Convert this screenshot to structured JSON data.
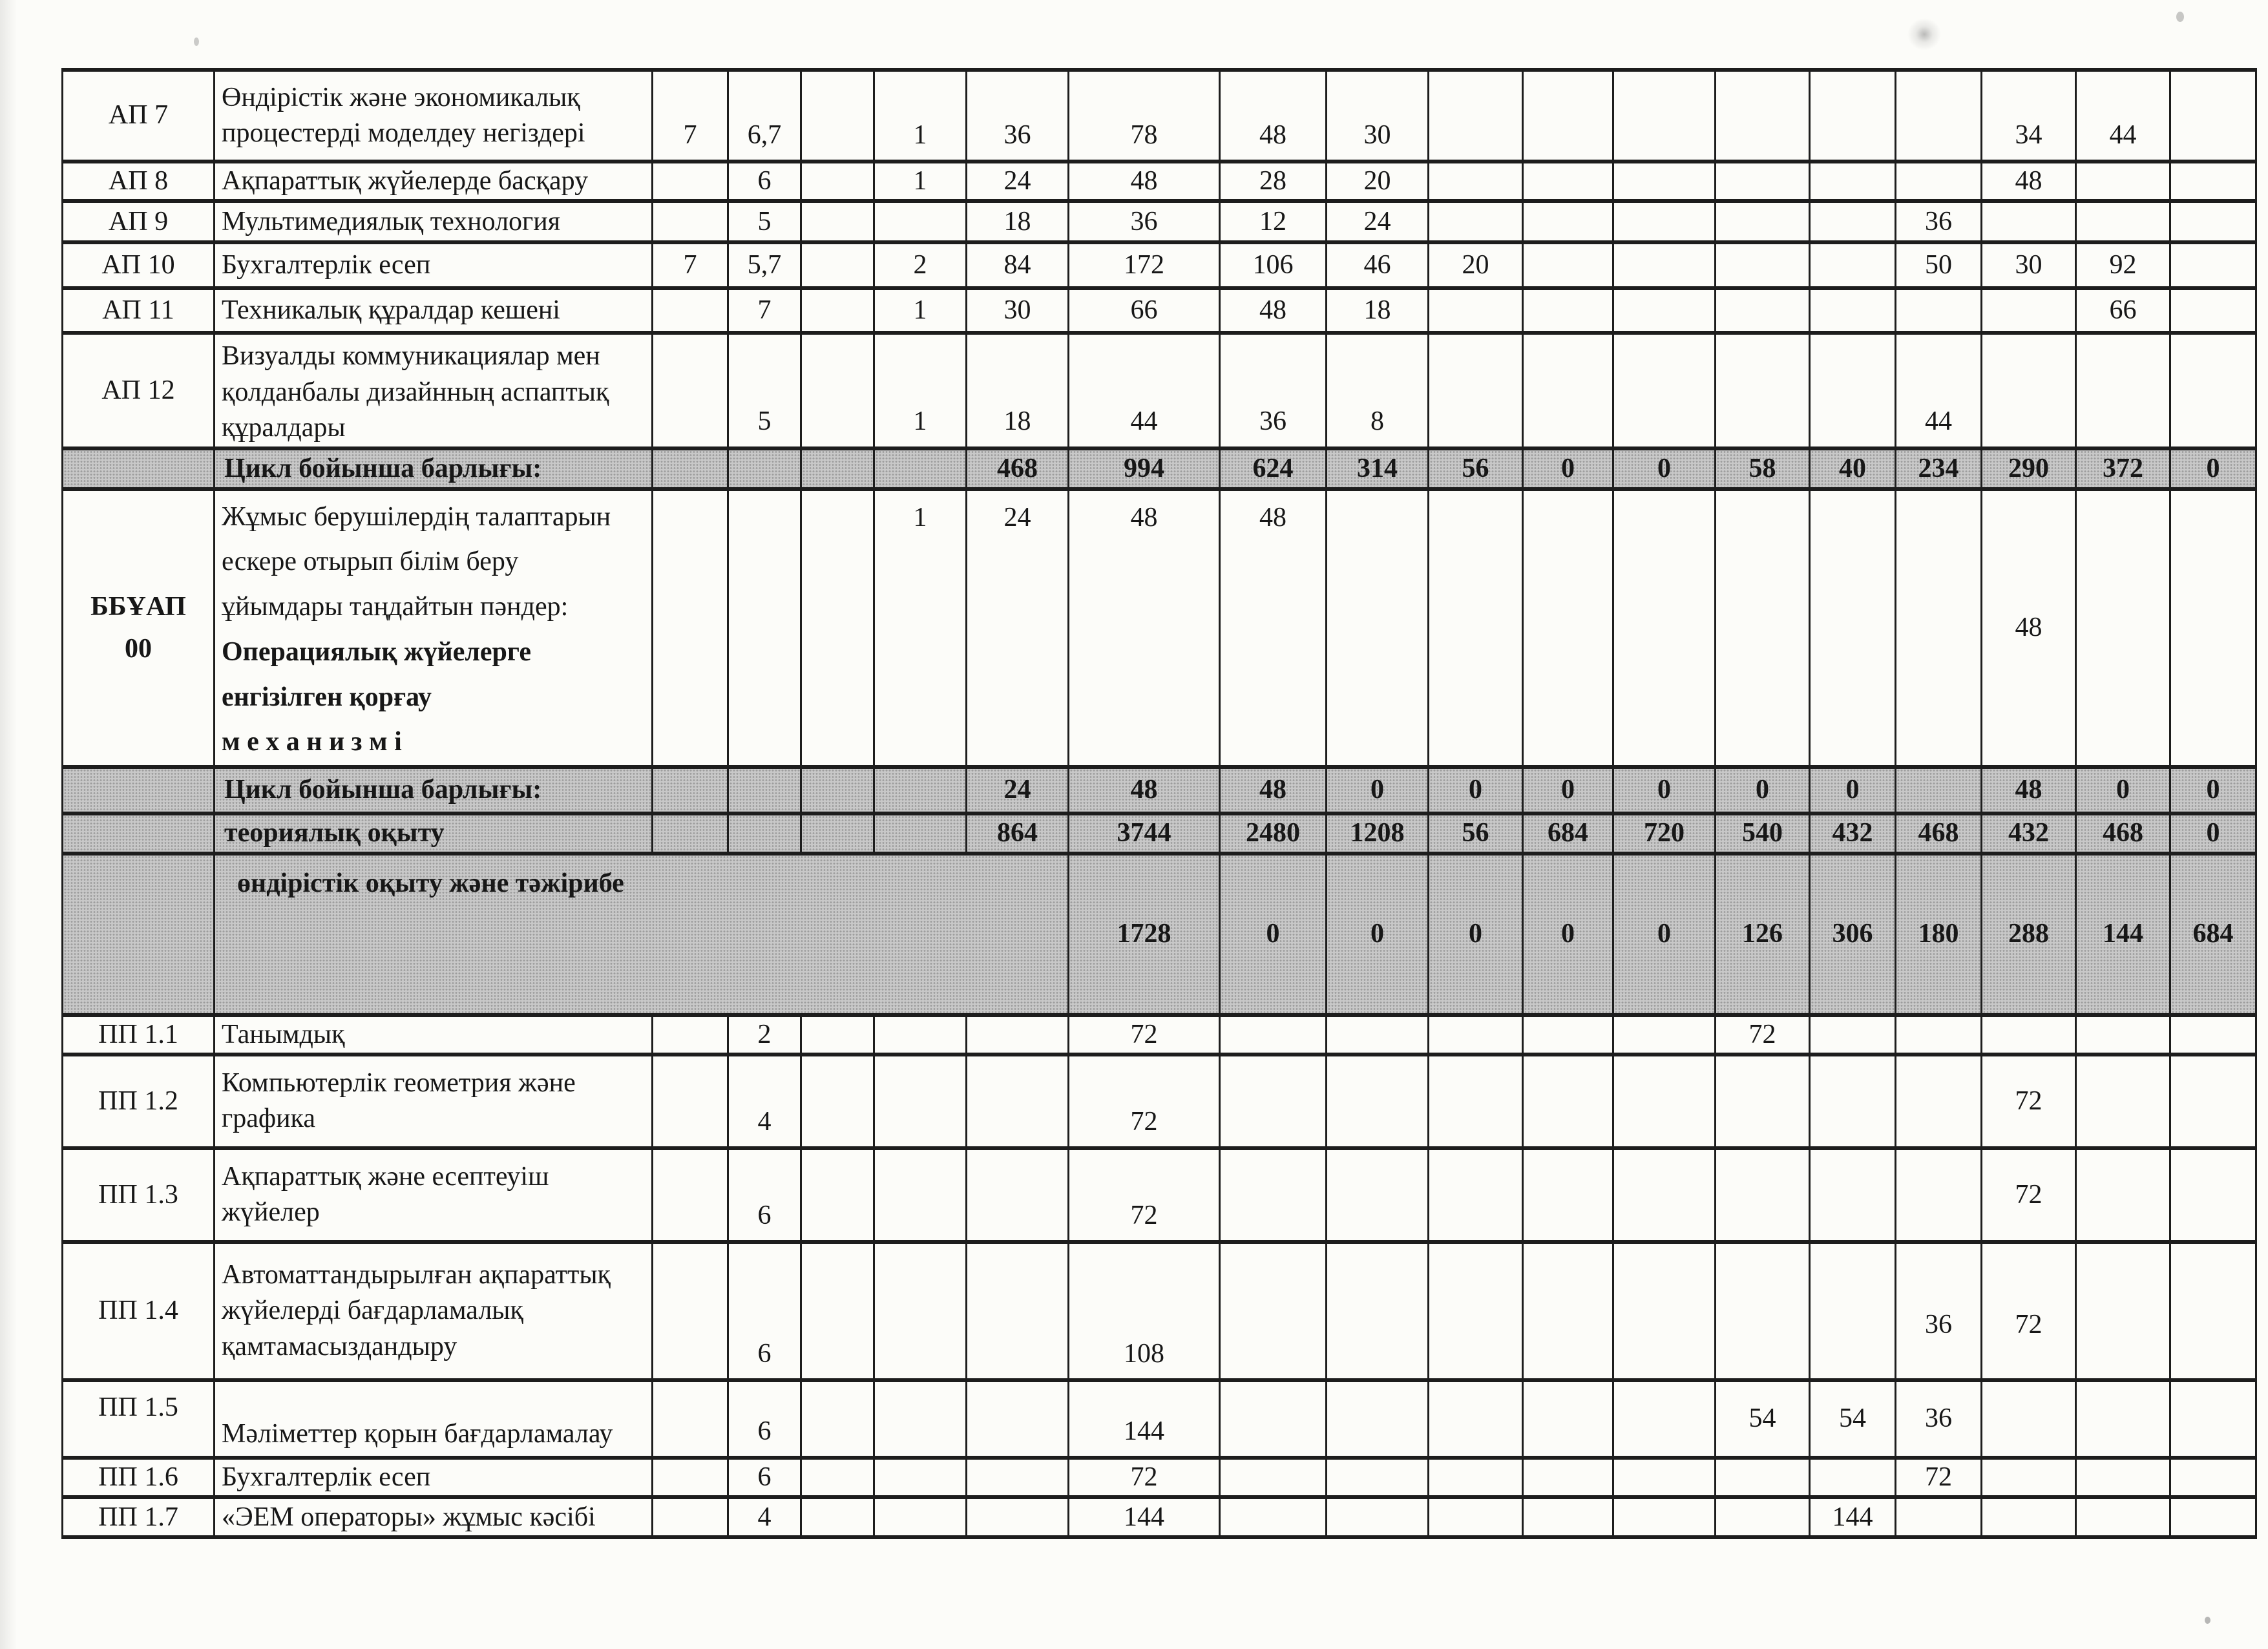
{
  "palette": {
    "paper": "#fcfcf9",
    "row_shading": "#c8c8c8",
    "grid_line": "#1d1d1d",
    "ink": "#171717"
  },
  "table": {
    "rows": [
      {
        "code": "АП 7",
        "name_lines": [
          "Өндірістік және экономикалық",
          "процестерді моделдеу негіздері"
        ],
        "cells": {
          "3": "7",
          "4": "6,7",
          "6": "1",
          "7": "36",
          "8": "78",
          "9": "48",
          "10": "30",
          "17": "34",
          "18": "44"
        }
      },
      {
        "code": "АП 8",
        "name": "Ақпараттық жүйелерде басқару",
        "cells": {
          "4": "6",
          "6": "1",
          "7": "24",
          "8": "48",
          "9": "28",
          "10": "20",
          "17": "48"
        }
      },
      {
        "code": "АП 9",
        "name": "Мультимедиялық технология",
        "cells": {
          "4": "5",
          "7": "18",
          "8": "36",
          "9": "12",
          "10": "24",
          "16": "36"
        }
      },
      {
        "code": "АП 10",
        "name": "Бухгалтерлік есеп",
        "cells": {
          "3": "7",
          "4": "5,7",
          "6": "2",
          "7": "84",
          "8": "172",
          "9": "106",
          "10": "46",
          "11": "20",
          "16": "50",
          "17": "30",
          "18": "92"
        }
      },
      {
        "code": "АП 11",
        "name": "Техникалық құралдар кешені",
        "cells": {
          "4": "7",
          "6": "1",
          "7": "30",
          "8": "66",
          "9": "48",
          "10": "18",
          "18": "66"
        }
      },
      {
        "code": "АП 12",
        "name_lines": [
          "Визуалды коммуникациялар мен",
          "қолданбалы дизайнның аспаптық",
          "құралдары"
        ],
        "cells": {
          "4": "5",
          "6": "1",
          "7": "18",
          "8": "44",
          "9": "36",
          "10": "8",
          "16": "44"
        }
      },
      {
        "code": "",
        "name": "Цикл бойынша барлығы:",
        "total": true,
        "cells": {
          "7": "468",
          "8": "994",
          "9": "624",
          "10": "314",
          "11": "56",
          "12": "0",
          "13": "0",
          "14": "58",
          "15": "40",
          "16": "234",
          "17": "290",
          "18": "372",
          "19": "0"
        }
      },
      {
        "code_lines": [
          "ББҰАП",
          "00"
        ],
        "name_intro_lines": [
          "Жұмыс берушілердің талаптарын",
          "ескере отырып білім беру",
          "ұйымдары таңдайтын пәндер:"
        ],
        "name_bold_lines": [
          "Операциялық жүйелерге",
          "енгізілген қорғау",
          "м е х а н и з м і"
        ],
        "cells": {
          "6": "1",
          "7": "24",
          "8": "48",
          "9": "48",
          "17": "48"
        }
      },
      {
        "code": "",
        "name": "Цикл бойынша барлығы:",
        "total": true,
        "cells": {
          "7": "24",
          "8": "48",
          "9": "48",
          "10": "0",
          "11": "0",
          "12": "0",
          "13": "0",
          "14": "0",
          "15": "0",
          "17": "48",
          "18": "0",
          "19": "0"
        }
      },
      {
        "code": "",
        "name": "теориялық оқыту",
        "total": true,
        "cells": {
          "7": "864",
          "8": "3744",
          "9": "2480",
          "10": "1208",
          "11": "56",
          "12": "684",
          "13": "720",
          "14": "540",
          "15": "432",
          "16": "468",
          "17": "432",
          "18": "468",
          "19": "0"
        }
      },
      {
        "code": "",
        "name": "өндірістік оқыту және  тәжірибе",
        "total": true,
        "name_span_note": "label spans columns 2-7",
        "cells": {
          "8": "1728",
          "9": "0",
          "10": "0",
          "11": "0",
          "12": "0",
          "13": "0",
          "14": "126",
          "15": "306",
          "16": "180",
          "17": "288",
          "18": "144",
          "19": "684"
        }
      },
      {
        "code": "ПП 1.1",
        "name": "Танымдық",
        "cells": {
          "4": "2",
          "8": "72",
          "14": "72"
        }
      },
      {
        "code": "ПП 1.2",
        "name_lines": [
          "Компьютерлік геометрия және",
          "графика"
        ],
        "cells": {
          "4": "4",
          "8": "72",
          "17": "72"
        }
      },
      {
        "code": "ПП 1.3",
        "name_lines": [
          "Ақпараттық және есептеуіш",
          "жүйелер"
        ],
        "cells": {
          "4": "6",
          "8": "72",
          "17": "72"
        }
      },
      {
        "code": "ПП 1.4",
        "name_lines": [
          "Автоматтандырылған ақпараттық",
          "жүйелерді бағдарламалық",
          "қамтамасыздандыру"
        ],
        "cells": {
          "4": "6",
          "8": "108",
          "16": "36",
          "17": "72"
        }
      },
      {
        "code": "ПП 1.5",
        "name": "Мәліметтер қорын бағдарламалау",
        "cells": {
          "4": "6",
          "8": "144",
          "14": "54",
          "15": "54",
          "16": "36"
        }
      },
      {
        "code": "ПП 1.6",
        "name": "Бухгалтерлік есеп",
        "cells": {
          "4": "6",
          "8": "72",
          "16": "72"
        }
      },
      {
        "code": "ПП 1.7",
        "name": "«ЭЕМ операторы» жұмыс кәсібі",
        "cells": {
          "4": "4",
          "8": "144",
          "15": "144"
        }
      }
    ]
  }
}
